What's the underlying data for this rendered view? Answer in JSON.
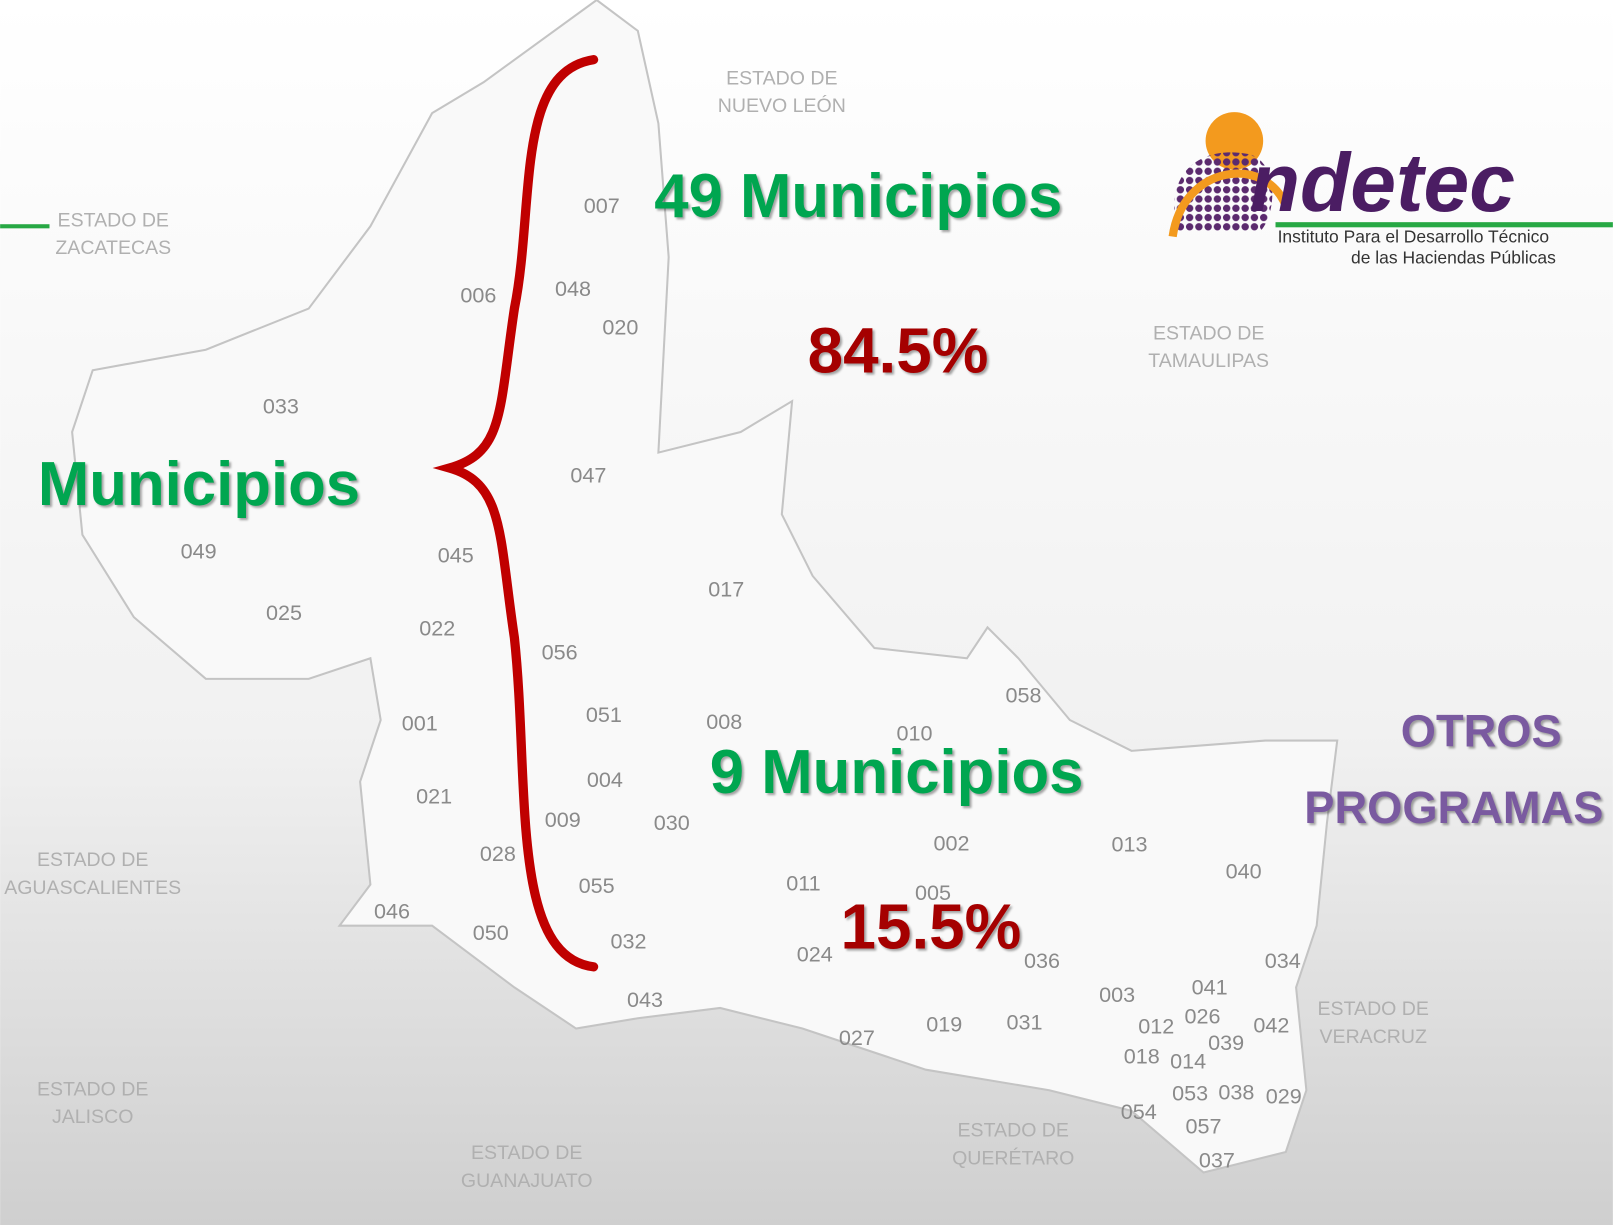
{
  "top_group": {
    "count": "49 Municipios",
    "share": "84.5%"
  },
  "bottom_group": {
    "count": "9 Municipios",
    "share": "15.5%"
  },
  "left_label": "Municipios",
  "other_programs": [
    "OTROS",
    "PROGRAMAS"
  ],
  "logo": {
    "wordmark": "ndetec",
    "line1": "Instituto Para el Desarrollo Técnico",
    "line2": "de las Haciendas Públicas"
  },
  "map": {
    "states": [
      [
        "ESTADO DE",
        "NUEVO LEÓN"
      ],
      [
        "ESTADO DE",
        "TAMAULIPAS"
      ],
      [
        "ESTADO DE",
        "ZACATECAS"
      ],
      [
        "ESTADO DE",
        "AGUASCALIENTES"
      ],
      [
        "ESTADO DE",
        "JALISCO"
      ],
      [
        "ESTADO DE",
        "GUANAJUATO"
      ],
      [
        "ESTADO DE",
        "QUERÉTARO"
      ],
      [
        "ESTADO DE",
        "VERACRUZ"
      ]
    ],
    "municipalities": [
      "007",
      "006",
      "048",
      "020",
      "033",
      "047",
      "049",
      "045",
      "017",
      "025",
      "022",
      "056",
      "058",
      "001",
      "051",
      "008",
      "010",
      "021",
      "004",
      "009",
      "030",
      "002",
      "013",
      "028",
      "040",
      "055",
      "011",
      "005",
      "046",
      "050",
      "032",
      "024",
      "036",
      "034",
      "043",
      "003",
      "041",
      "026",
      "012",
      "042",
      "039",
      "018",
      "014",
      "027",
      "019",
      "031",
      "053",
      "038",
      "029",
      "054",
      "057",
      "037"
    ]
  }
}
